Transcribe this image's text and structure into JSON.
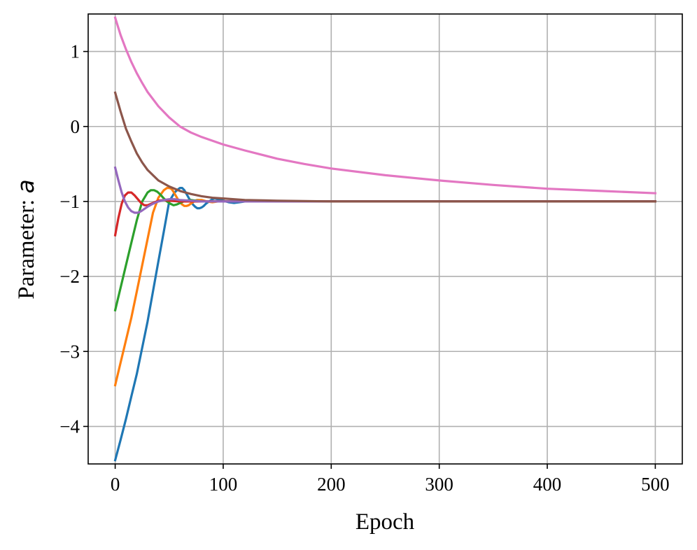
{
  "chart_data": {
    "type": "line",
    "xlabel": "Epoch",
    "ylabel_prefix": "Parameter: ",
    "ylabel_var": "a",
    "xlim": [
      -25,
      525
    ],
    "ylim": [
      -4.5,
      1.5
    ],
    "xticks": [
      0,
      100,
      200,
      300,
      400,
      500
    ],
    "xtick_labels": [
      "0",
      "100",
      "200",
      "300",
      "400",
      "500"
    ],
    "yticks": [
      1,
      0,
      -1,
      -2,
      -3,
      -4
    ],
    "ytick_labels": [
      "1",
      "0",
      "−1",
      "−2",
      "−3",
      "−4"
    ],
    "grid": true,
    "series": [
      {
        "color": "#1f77b4",
        "x": [
          0,
          5,
          10,
          15,
          20,
          25,
          30,
          35,
          40,
          45,
          50,
          55,
          58,
          60,
          62,
          64,
          66,
          68,
          70,
          72,
          74,
          76,
          78,
          80,
          82,
          84,
          86,
          88,
          90,
          92,
          95,
          100,
          105,
          110,
          115,
          120,
          125,
          130,
          140,
          150,
          200,
          300,
          400,
          500
        ],
        "y": [
          -4.45,
          -4.18,
          -3.9,
          -3.6,
          -3.3,
          -2.95,
          -2.6,
          -2.2,
          -1.8,
          -1.4,
          -1.0,
          -0.88,
          -0.84,
          -0.82,
          -0.82,
          -0.85,
          -0.9,
          -0.95,
          -1.0,
          -1.04,
          -1.07,
          -1.09,
          -1.09,
          -1.08,
          -1.06,
          -1.03,
          -1.01,
          -0.99,
          -0.97,
          -0.96,
          -0.97,
          -0.99,
          -1.01,
          -1.02,
          -1.01,
          -1.0,
          -0.99,
          -1.0,
          -1.0,
          -1.0,
          -1.0,
          -1.0,
          -1.0,
          -1.0
        ]
      },
      {
        "color": "#ff7f0e",
        "x": [
          0,
          5,
          10,
          15,
          20,
          25,
          30,
          35,
          40,
          45,
          48,
          50,
          52,
          54,
          56,
          58,
          60,
          62,
          64,
          66,
          68,
          70,
          72,
          74,
          76,
          80,
          85,
          90,
          95,
          100,
          110,
          120,
          150,
          200,
          300,
          400,
          500
        ],
        "y": [
          -3.45,
          -3.15,
          -2.85,
          -2.55,
          -2.2,
          -1.85,
          -1.5,
          -1.15,
          -0.95,
          -0.85,
          -0.82,
          -0.82,
          -0.83,
          -0.87,
          -0.92,
          -0.97,
          -1.01,
          -1.04,
          -1.06,
          -1.06,
          -1.05,
          -1.03,
          -1.01,
          -0.99,
          -0.98,
          -0.98,
          -1.0,
          -1.01,
          -1.0,
          -1.0,
          -1.0,
          -1.0,
          -1.0,
          -1.0,
          -1.0,
          -1.0,
          -1.0
        ]
      },
      {
        "color": "#2ca02c",
        "x": [
          0,
          5,
          10,
          15,
          20,
          25,
          30,
          33,
          36,
          39,
          42,
          45,
          48,
          51,
          54,
          57,
          60,
          65,
          70,
          80,
          90,
          100,
          150,
          200,
          300,
          400,
          500
        ],
        "y": [
          -2.45,
          -2.15,
          -1.85,
          -1.55,
          -1.25,
          -1.0,
          -0.88,
          -0.85,
          -0.85,
          -0.87,
          -0.91,
          -0.96,
          -1.0,
          -1.03,
          -1.05,
          -1.04,
          -1.02,
          -0.99,
          -0.98,
          -1.0,
          -1.0,
          -1.0,
          -1.0,
          -1.0,
          -1.0,
          -1.0,
          -1.0
        ]
      },
      {
        "color": "#d62728",
        "x": [
          0,
          3,
          6,
          9,
          12,
          15,
          18,
          21,
          24,
          27,
          30,
          35,
          40,
          45,
          50,
          60,
          80,
          100,
          150,
          200,
          300,
          400,
          500
        ],
        "y": [
          -1.45,
          -1.22,
          -1.03,
          -0.92,
          -0.88,
          -0.88,
          -0.92,
          -0.97,
          -1.02,
          -1.05,
          -1.05,
          -1.02,
          -0.99,
          -0.98,
          -0.99,
          -1.0,
          -1.0,
          -1.0,
          -1.0,
          -1.0,
          -1.0,
          -1.0,
          -1.0
        ]
      },
      {
        "color": "#9467bd",
        "x": [
          0,
          3,
          6,
          9,
          12,
          15,
          18,
          21,
          24,
          27,
          30,
          35,
          40,
          45,
          50,
          55,
          60,
          70,
          80,
          100,
          150,
          200,
          300,
          400,
          500
        ],
        "y": [
          -0.55,
          -0.72,
          -0.88,
          -1.0,
          -1.08,
          -1.13,
          -1.15,
          -1.15,
          -1.13,
          -1.1,
          -1.07,
          -1.03,
          -1.0,
          -0.98,
          -0.97,
          -0.97,
          -0.98,
          -0.99,
          -1.0,
          -1.0,
          -1.0,
          -1.0,
          -1.0,
          -1.0,
          -1.0
        ]
      },
      {
        "color": "#e377c2",
        "x": [
          0,
          5,
          10,
          15,
          20,
          25,
          30,
          40,
          50,
          60,
          70,
          80,
          100,
          120,
          150,
          175,
          200,
          250,
          300,
          350,
          400,
          450,
          500
        ],
        "y": [
          1.45,
          1.22,
          1.03,
          0.86,
          0.71,
          0.58,
          0.46,
          0.27,
          0.12,
          0.0,
          -0.08,
          -0.14,
          -0.24,
          -0.32,
          -0.43,
          -0.5,
          -0.56,
          -0.65,
          -0.72,
          -0.78,
          -0.83,
          -0.86,
          -0.89
        ]
      },
      {
        "color": "#8c564b",
        "x": [
          0,
          5,
          10,
          15,
          20,
          25,
          30,
          40,
          50,
          60,
          70,
          80,
          90,
          100,
          120,
          150,
          200,
          300,
          400,
          500
        ],
        "y": [
          0.45,
          0.2,
          -0.03,
          -0.2,
          -0.36,
          -0.48,
          -0.58,
          -0.72,
          -0.8,
          -0.86,
          -0.9,
          -0.93,
          -0.95,
          -0.96,
          -0.98,
          -0.99,
          -1.0,
          -1.0,
          -1.0,
          -1.0
        ]
      }
    ]
  }
}
